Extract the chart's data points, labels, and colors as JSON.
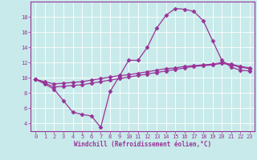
{
  "title": "",
  "xlabel": "Windchill (Refroidissement éolien,°C)",
  "ylabel": "",
  "bg_color": "#c8eaea",
  "line_color": "#993399",
  "xlim": [
    -0.5,
    23.5
  ],
  "ylim": [
    3.0,
    20.0
  ],
  "yticks": [
    4,
    6,
    8,
    10,
    12,
    14,
    16,
    18
  ],
  "xticks": [
    0,
    1,
    2,
    3,
    4,
    5,
    6,
    7,
    8,
    9,
    10,
    11,
    12,
    13,
    14,
    15,
    16,
    17,
    18,
    19,
    20,
    21,
    22,
    23
  ],
  "line1_x": [
    0,
    1,
    2,
    3,
    4,
    5,
    6,
    7,
    8,
    9,
    10,
    11,
    12,
    13,
    14,
    15,
    16,
    17,
    18,
    19,
    20,
    21,
    22,
    23
  ],
  "line1_y": [
    9.8,
    9.2,
    8.5,
    7.0,
    5.5,
    5.2,
    5.0,
    3.5,
    8.2,
    10.2,
    12.3,
    12.3,
    14.0,
    16.5,
    18.2,
    19.1,
    19.0,
    18.7,
    17.5,
    14.9,
    12.3,
    11.4,
    11.0,
    10.9
  ],
  "line2_x": [
    0,
    1,
    2,
    3,
    4,
    5,
    6,
    7,
    8,
    9,
    10,
    11,
    12,
    13,
    14,
    15,
    16,
    17,
    18,
    19,
    20,
    21,
    22,
    23
  ],
  "line2_y": [
    9.8,
    9.3,
    8.8,
    8.9,
    9.0,
    9.1,
    9.3,
    9.5,
    9.7,
    9.9,
    10.1,
    10.3,
    10.5,
    10.7,
    10.9,
    11.1,
    11.3,
    11.5,
    11.6,
    11.7,
    11.9,
    11.7,
    11.4,
    11.2
  ],
  "line3_x": [
    0,
    1,
    2,
    3,
    4,
    5,
    6,
    7,
    8,
    9,
    10,
    11,
    12,
    13,
    14,
    15,
    16,
    17,
    18,
    19,
    20,
    21,
    22,
    23
  ],
  "line3_y": [
    9.8,
    9.5,
    9.2,
    9.3,
    9.4,
    9.5,
    9.7,
    9.9,
    10.1,
    10.3,
    10.4,
    10.6,
    10.8,
    11.0,
    11.2,
    11.3,
    11.5,
    11.6,
    11.7,
    11.8,
    12.0,
    11.8,
    11.5,
    11.3
  ]
}
